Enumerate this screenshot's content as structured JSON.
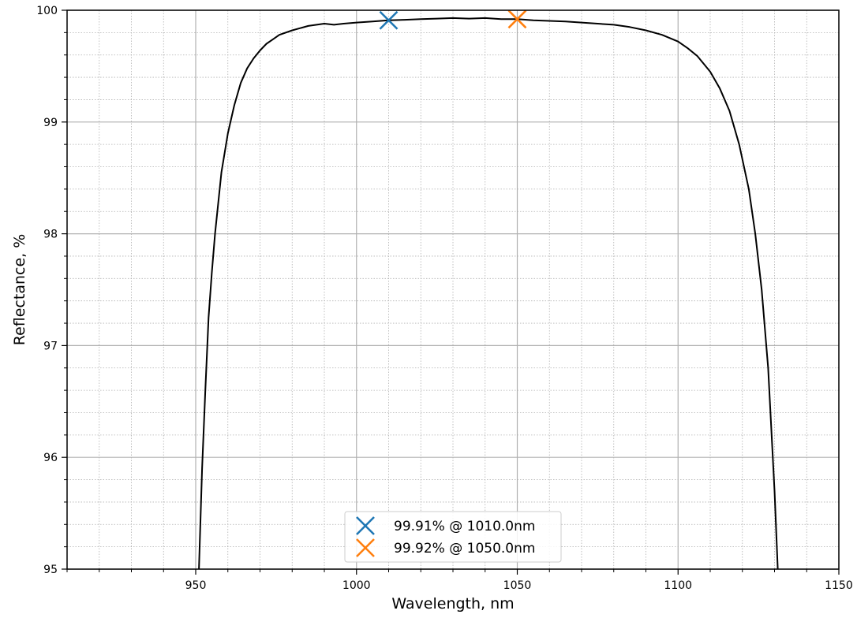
{
  "chart_data": {
    "type": "line",
    "title": "",
    "xlabel": "Wavelength, nm",
    "ylabel": "Reflectance, %",
    "xlim": [
      910,
      1150
    ],
    "ylim": [
      95,
      100
    ],
    "x_ticks": [
      950,
      1000,
      1050,
      1100,
      1150
    ],
    "x_tick_labels": [
      "950",
      "1000",
      "1050",
      "1100",
      "1150"
    ],
    "y_ticks": [
      95,
      96,
      97,
      98,
      99,
      100
    ],
    "y_tick_labels": [
      "95",
      "96",
      "97",
      "98",
      "99",
      "100"
    ],
    "grid": {
      "major": true,
      "minor": true,
      "major_color": "#b0b0b0",
      "minor_color": "#b0b0b0"
    },
    "legend_position": "lower center",
    "series": [
      {
        "color": "#000000",
        "x": [
          951,
          952,
          953,
          954,
          955,
          956,
          958,
          960,
          962,
          964,
          966,
          968,
          970,
          972,
          974,
          976,
          980,
          985,
          990,
          993,
          996,
          1000,
          1005,
          1010,
          1015,
          1020,
          1025,
          1030,
          1035,
          1040,
          1045,
          1050,
          1055,
          1060,
          1065,
          1070,
          1075,
          1080,
          1085,
          1090,
          1095,
          1100,
          1103,
          1106,
          1110,
          1113,
          1116,
          1119,
          1122,
          1124,
          1126,
          1128,
          1130,
          1131
        ],
        "y": [
          95.0,
          95.9,
          96.6,
          97.25,
          97.65,
          98.0,
          98.55,
          98.9,
          99.15,
          99.35,
          99.48,
          99.57,
          99.64,
          99.7,
          99.74,
          99.78,
          99.82,
          99.86,
          99.88,
          99.87,
          99.88,
          99.89,
          99.9,
          99.91,
          99.915,
          99.92,
          99.925,
          99.93,
          99.925,
          99.93,
          99.92,
          99.92,
          99.91,
          99.905,
          99.9,
          99.89,
          99.88,
          99.87,
          99.85,
          99.82,
          99.78,
          99.72,
          99.66,
          99.59,
          99.45,
          99.3,
          99.1,
          98.8,
          98.4,
          98.0,
          97.5,
          96.8,
          95.7,
          95.0
        ]
      }
    ],
    "markers": [
      {
        "label": "99.91% @ 1010.0nm",
        "x": 1010.0,
        "y": 99.91,
        "color": "#1f77b4",
        "symbol": "x"
      },
      {
        "label": "99.92% @ 1050.0nm",
        "x": 1050.0,
        "y": 99.92,
        "color": "#ff7f0e",
        "symbol": "x"
      }
    ]
  }
}
